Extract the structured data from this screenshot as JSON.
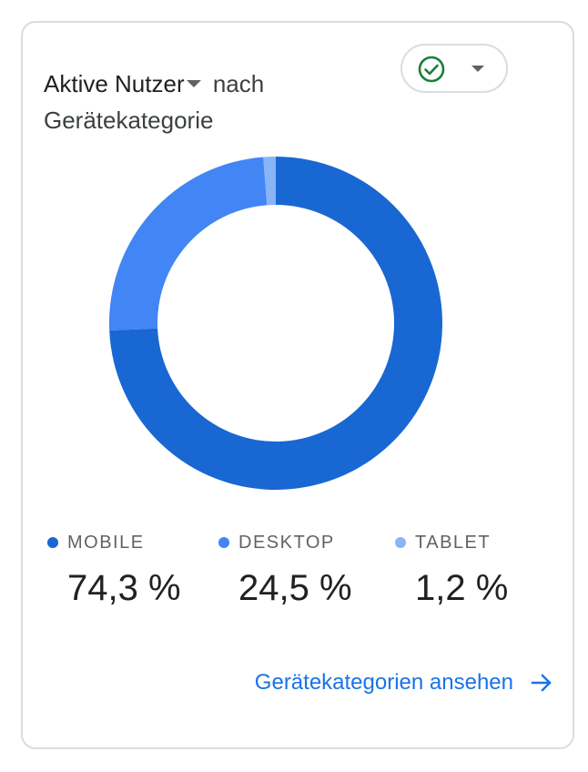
{
  "card": {
    "title_metric": "Aktive Nutzer",
    "title_rest": " nach",
    "title_dimension": "Gerätekategorie"
  },
  "compare_button": {
    "icon": "check-circle-icon",
    "dropdown_icon": "caret-down-icon"
  },
  "chart_data": {
    "type": "pie",
    "variant": "donut",
    "categories": [
      "MOBILE",
      "DESKTOP",
      "TABLET"
    ],
    "values": [
      74.3,
      24.5,
      1.2
    ],
    "value_labels": [
      "74,3 %",
      "24,5 %",
      "1,2 %"
    ],
    "colors": [
      "#1967d2",
      "#4285f4",
      "#8ab4f8"
    ],
    "start_angle_deg": 0,
    "direction": "clockwise"
  },
  "legend": [
    {
      "label": "MOBILE",
      "value": "74,3 %",
      "color": "#1967d2"
    },
    {
      "label": "DESKTOP",
      "value": "24,5 %",
      "color": "#4285f4"
    },
    {
      "label": "TABLET",
      "value": "1,2 %",
      "color": "#8ab4f8"
    }
  ],
  "footer": {
    "link_label": "Gerätekategorien ansehen",
    "link_icon": "arrow-right-icon"
  }
}
